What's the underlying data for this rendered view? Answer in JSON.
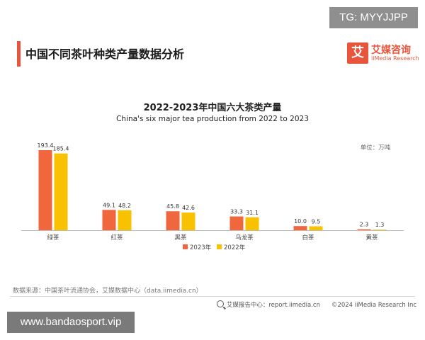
{
  "watermark_top": "TG: MYYJJPP",
  "header": {
    "title": "中国不同茶叶种类产量数据分析"
  },
  "brand": {
    "logo_char": "艾",
    "name_cn": "艾媒咨询",
    "name_en": "iiMedia Research"
  },
  "chart_data": {
    "type": "bar",
    "title": "2022-2023年中国六大茶类产量",
    "subtitle": "China's six major tea production from 2022 to 2023",
    "unit": "单位：万吨",
    "categories": [
      "绿茶",
      "红茶",
      "黑茶",
      "乌龙茶",
      "白茶",
      "黄茶"
    ],
    "series": [
      {
        "name": "2023年",
        "color": "#f0673d",
        "values": [
          193.4,
          49.1,
          45.8,
          33.3,
          10.0,
          2.3
        ],
        "labels": [
          "193.4",
          "49.1",
          "45.8",
          "33.3",
          "10.0",
          "2.3"
        ]
      },
      {
        "name": "2022年",
        "color": "#f8c200",
        "values": [
          185.4,
          48.2,
          42.6,
          31.1,
          9.5,
          1.3
        ],
        "labels": [
          "185.4",
          "48.2",
          "42.6",
          "31.1",
          "9.5",
          "1.3"
        ]
      }
    ],
    "ylim": [
      0,
      193.4
    ],
    "legend_position": "bottom",
    "grid": false
  },
  "source": "数据来源：中国茶叶流通协会，艾媒数据中心（data.iimedia.cn）",
  "footer": {
    "report_center": "艾媒报告中心：report.iimedia.cn",
    "copyright": "©2024  iiMedia Research  Inc"
  },
  "watermark_bottom": "www.bandaosport.vip"
}
